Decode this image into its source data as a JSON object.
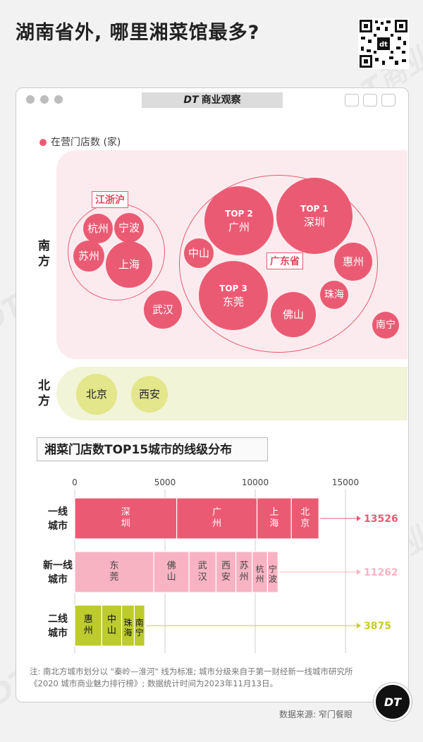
{
  "title": "湖南省外, 哪里湘菜馆最多?",
  "brand": {
    "mark": "DT",
    "name": "商业观察"
  },
  "legend": "在营门店数 (家)",
  "regions": {
    "south": "南方",
    "north": "北方"
  },
  "groups": {
    "jzh": "江浙沪",
    "gd": "广东省"
  },
  "bubbles": {
    "hangzhou": "杭州",
    "ningbo": "宁波",
    "suzhou": "苏州",
    "shanghai": "上海",
    "wuhan": "武汉",
    "zhongshan": "中山",
    "guangzhou": "广州",
    "shenzhen": "深圳",
    "dongguan": "东莞",
    "huizhou": "惠州",
    "zhuhai": "珠海",
    "foshan": "佛山",
    "nanning": "南宁",
    "beijing": "北京",
    "xian": "西安",
    "rank1": "TOP 1",
    "rank2": "TOP 2",
    "rank3": "TOP 3"
  },
  "chart_title": "湘菜门店数TOP15城市的线级分布",
  "colors": {
    "tier1": "#ea5b73",
    "newtier1": "#f7b3c2",
    "tier2": "#bdcb2e",
    "total2": "#c7cc2b",
    "accent": "#e5475f"
  },
  "chart_data": {
    "type": "bar",
    "stacked": true,
    "orientation": "horizontal",
    "xlim": [
      0,
      15000
    ],
    "xticks": [
      0,
      5000,
      10000,
      15000
    ],
    "grid": true,
    "categories": [
      "一线城市",
      "新一线城市",
      "二线城市"
    ],
    "category_labels": [
      [
        "一线",
        "城市"
      ],
      [
        "新一线",
        "城市"
      ],
      [
        "二线",
        "城市"
      ]
    ],
    "stacks": [
      {
        "segments": [
          {
            "name": "深圳",
            "value": 5650
          },
          {
            "name": "广州",
            "value": 4450
          },
          {
            "name": "上海",
            "value": 1900
          },
          {
            "name": "北京",
            "value": 1526
          }
        ],
        "total": 13526,
        "total_label": "13526"
      },
      {
        "segments": [
          {
            "name": "东莞",
            "value": 4380
          },
          {
            "name": "佛山",
            "value": 1950
          },
          {
            "name": "武汉",
            "value": 1500
          },
          {
            "name": "西安",
            "value": 1100
          },
          {
            "name": "苏州",
            "value": 900
          },
          {
            "name": "杭州",
            "value": 850
          },
          {
            "name": "宁波",
            "value": 582
          }
        ],
        "total": 11262,
        "total_label": "11262"
      },
      {
        "segments": [
          {
            "name": "惠州",
            "value": 1500
          },
          {
            "name": "中山",
            "value": 1100
          },
          {
            "name": "珠海",
            "value": 700
          },
          {
            "name": "南宁",
            "value": 575
          }
        ],
        "total": 3875,
        "total_label": "3875"
      }
    ]
  },
  "footnote": "注: 南北方城市划分以 \"秦岭—淮河\" 线为标准; 城市分级来自于第一财经新一线城市研究所《2020 城市商业魅力排行榜》; 数据统计时间为2023年11月13日。",
  "source": "数据来源: 窄门餐眼",
  "badge": "DT"
}
